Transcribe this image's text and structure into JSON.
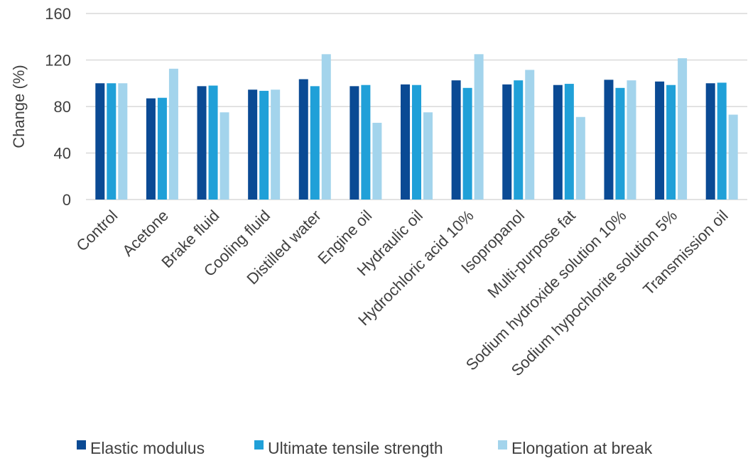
{
  "chart_data": {
    "type": "bar",
    "title": "",
    "xlabel": "",
    "ylabel": "Change (%)",
    "ylim": [
      0,
      160
    ],
    "yticks": [
      0,
      40,
      80,
      120,
      160
    ],
    "grid": true,
    "legend_position": "bottom",
    "categories": [
      "Control",
      "Acetone",
      "Brake fluid",
      "Cooling fluid",
      "Distilled water",
      "Engine oil",
      "Hydraulic oil",
      "Hydrochloric acid 10%",
      "Isopropanol",
      "Multi-purpose fat",
      "Sodium hydroxide solution 10%",
      "Sodium hypochlorite solution 5%",
      "Transmission oil"
    ],
    "series": [
      {
        "name": "Elastic modulus",
        "color": "#0a4a94",
        "values": [
          100,
          87,
          97.5,
          94.5,
          103.5,
          97.5,
          99,
          102.5,
          99,
          98.5,
          103,
          101.5,
          100
        ]
      },
      {
        "name": "Ultimate tensile strength",
        "color": "#20a0d8",
        "values": [
          100,
          87.5,
          98,
          93.5,
          97.5,
          98.5,
          98.5,
          96,
          102.5,
          99.5,
          96,
          98.5,
          100.5
        ]
      },
      {
        "name": "Elongation at break",
        "color": "#a3d4ec",
        "values": [
          100,
          112.5,
          75,
          94.5,
          125,
          66,
          75,
          125,
          111.5,
          71,
          102.5,
          121.5,
          73
        ]
      }
    ]
  },
  "colors": {
    "grid": "#d9d9d9",
    "text": "#404040"
  }
}
